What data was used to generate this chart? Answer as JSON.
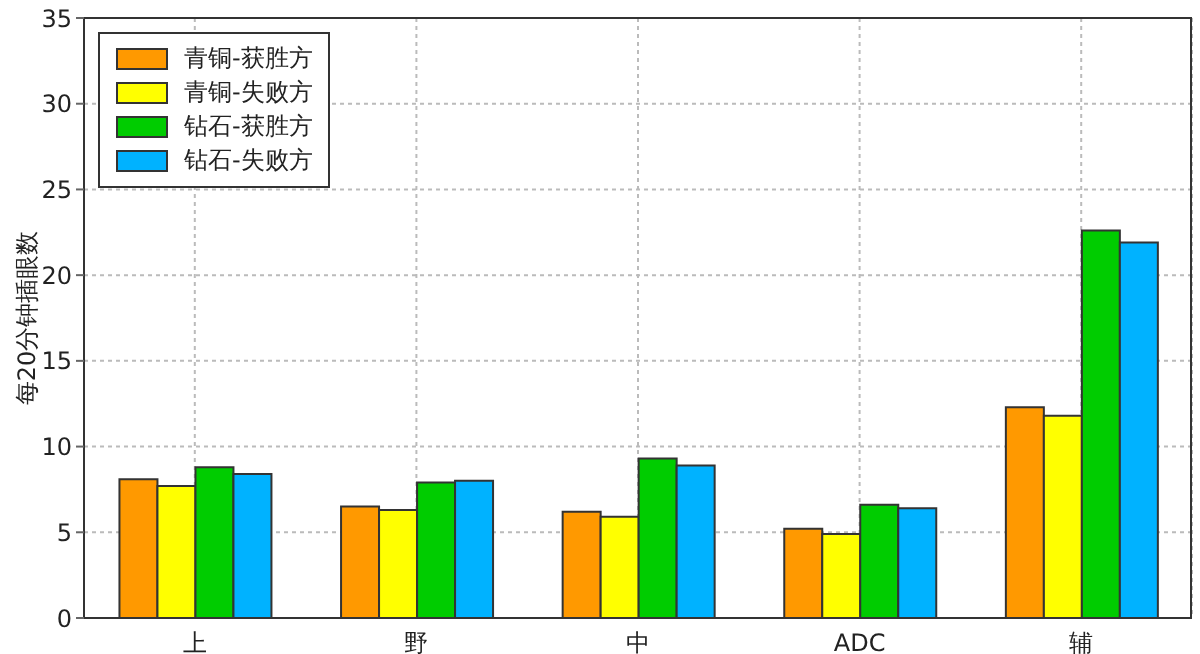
{
  "chart_data": {
    "type": "bar",
    "ylabel": "每20分钟插眼数",
    "categories": [
      "上",
      "野",
      "中",
      "ADC",
      "辅"
    ],
    "series": [
      {
        "name": "青铜-获胜方",
        "color": "#ff9900",
        "values": [
          8.1,
          6.5,
          6.2,
          5.2,
          12.3
        ]
      },
      {
        "name": "青铜-失败方",
        "color": "#ffff00",
        "values": [
          7.7,
          6.3,
          5.9,
          4.9,
          11.8
        ]
      },
      {
        "name": "钻石-获胜方",
        "color": "#00cc00",
        "values": [
          8.8,
          7.9,
          9.3,
          6.6,
          22.6
        ]
      },
      {
        "name": "钻石-失败方",
        "color": "#00b2ff",
        "values": [
          8.4,
          8.0,
          8.9,
          6.4,
          21.9
        ]
      }
    ],
    "ylim": [
      0,
      35
    ],
    "yticks": [
      0,
      5,
      10,
      15,
      20,
      25,
      30,
      35
    ],
    "grid": true,
    "legend": "top left"
  }
}
